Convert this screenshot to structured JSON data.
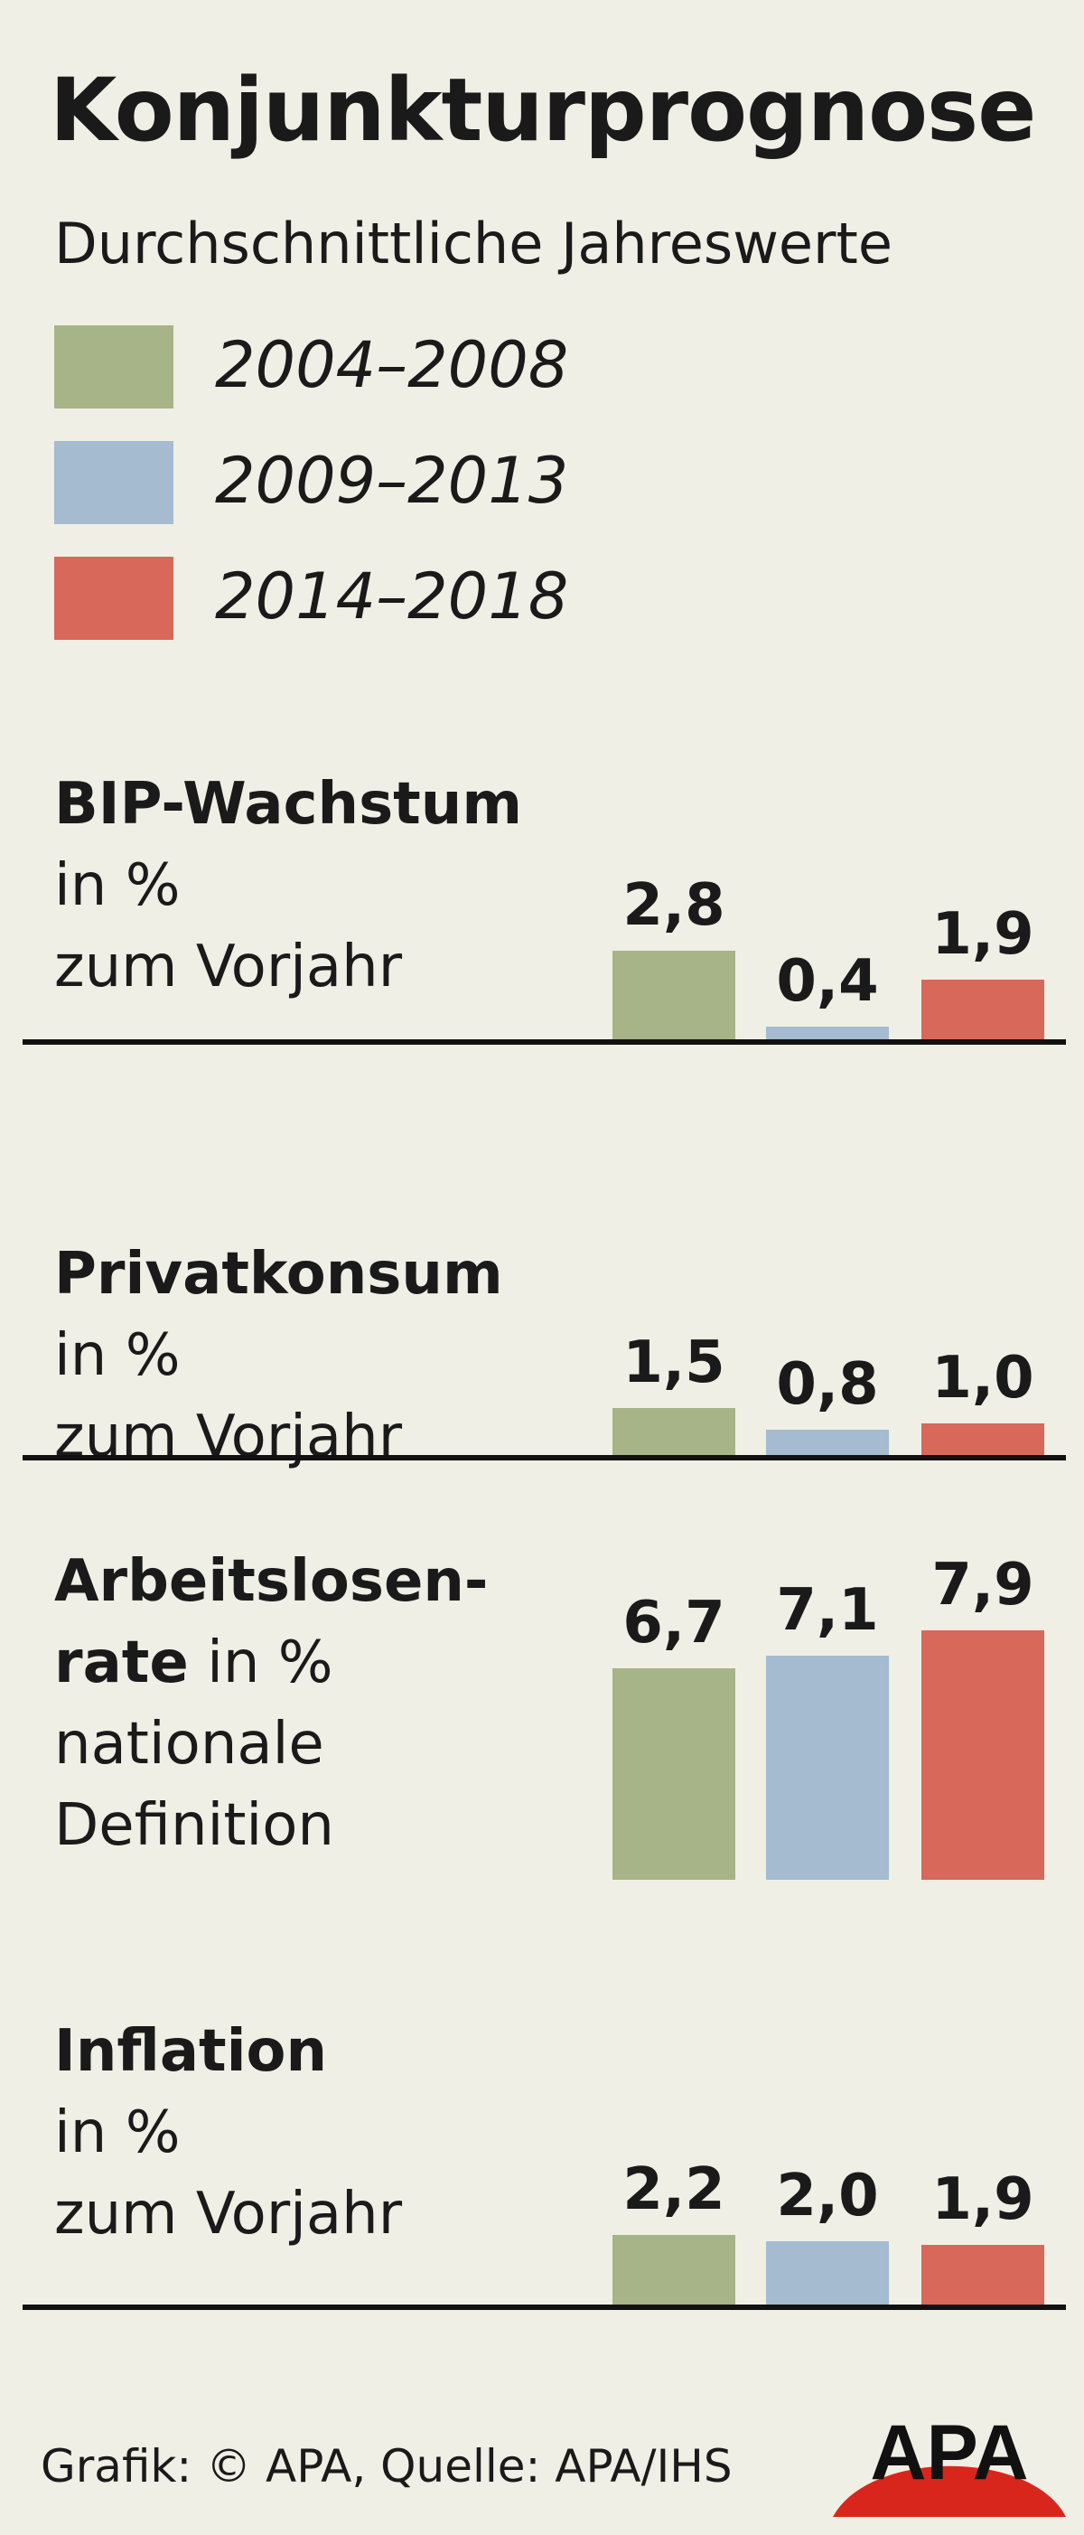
{
  "header": {
    "title": "Konjunkturprognose",
    "subtitle": "Durchschnittliche Jahreswerte"
  },
  "legend": [
    {
      "label": "2004–2008",
      "color": "#a7b487"
    },
    {
      "label": "2009–2013",
      "color": "#a4bbd0"
    },
    {
      "label": "2014–2018",
      "color": "#d7685a"
    }
  ],
  "footer": {
    "credit": "Grafik: © APA, Quelle: APA/IHS",
    "logo_text": "APA"
  },
  "chart_data": [
    {
      "type": "bar",
      "title": "BIP-Wachstum",
      "label_lines": [
        "in %",
        "zum Vorjahr"
      ],
      "categories": [
        "2004–2008",
        "2009–2013",
        "2014–2018"
      ],
      "values": [
        2.8,
        0.4,
        1.9
      ],
      "value_labels": [
        "2,8",
        "0,4",
        "1,9"
      ]
    },
    {
      "type": "bar",
      "title": "Privatkonsum",
      "label_lines": [
        "in %",
        "zum Vorjahr"
      ],
      "categories": [
        "2004–2008",
        "2009–2013",
        "2014–2018"
      ],
      "values": [
        1.5,
        0.8,
        1.0
      ],
      "value_labels": [
        "1,5",
        "0,8",
        "1,0"
      ]
    },
    {
      "type": "bar",
      "title": "Arbeitslosen-",
      "title_cont": "rate",
      "label_lines": [
        "in %",
        "nationale",
        "Definition"
      ],
      "categories": [
        "2004–2008",
        "2009–2013",
        "2014–2018"
      ],
      "values": [
        6.7,
        7.1,
        7.9
      ],
      "value_labels": [
        "6,7",
        "7,1",
        "7,9"
      ]
    },
    {
      "type": "bar",
      "title": "Inflation",
      "label_lines": [
        "in %",
        "zum Vorjahr"
      ],
      "categories": [
        "2004–2008",
        "2009–2013",
        "2014–2018"
      ],
      "values": [
        2.2,
        2.0,
        1.9
      ],
      "value_labels": [
        "2,2",
        "2,0",
        "1,9"
      ]
    }
  ]
}
